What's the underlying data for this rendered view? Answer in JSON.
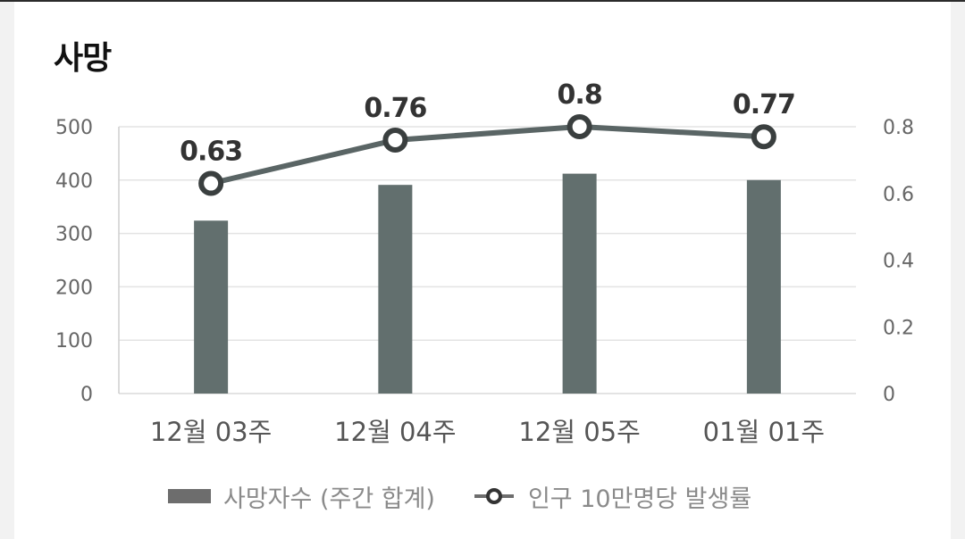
{
  "page": {
    "title": "사망"
  },
  "colors": {
    "bar": "#626f6e",
    "line": "#5a6565",
    "grid": "#e3e3e3",
    "axis_text": "#666666",
    "label_text": "#333333",
    "legend_text": "#8a8a8a"
  },
  "chart_data": {
    "type": "bar",
    "title": "사망",
    "categories": [
      "12월 03주",
      "12월 04주",
      "12월 05주",
      "01월 01주"
    ],
    "series": [
      {
        "name": "사망자수 (주간 합계)",
        "type": "bar",
        "axis": "left",
        "values": [
          324,
          391,
          412,
          400
        ]
      },
      {
        "name": "인구 10만명당 발생률",
        "type": "line",
        "axis": "right",
        "values": [
          0.63,
          0.76,
          0.8,
          0.77
        ],
        "data_labels": [
          "0.63",
          "0.76",
          "0.8",
          "0.77"
        ]
      }
    ],
    "y_left": {
      "ylim": [
        0,
        500
      ],
      "ticks": [
        "0",
        "100",
        "200",
        "300",
        "400",
        "500"
      ]
    },
    "y_right": {
      "ylim": [
        0,
        0.8
      ],
      "ticks": [
        "0",
        "0.2",
        "0.4",
        "0.6",
        "0.8"
      ]
    },
    "grid": true,
    "legend": "bottom"
  }
}
